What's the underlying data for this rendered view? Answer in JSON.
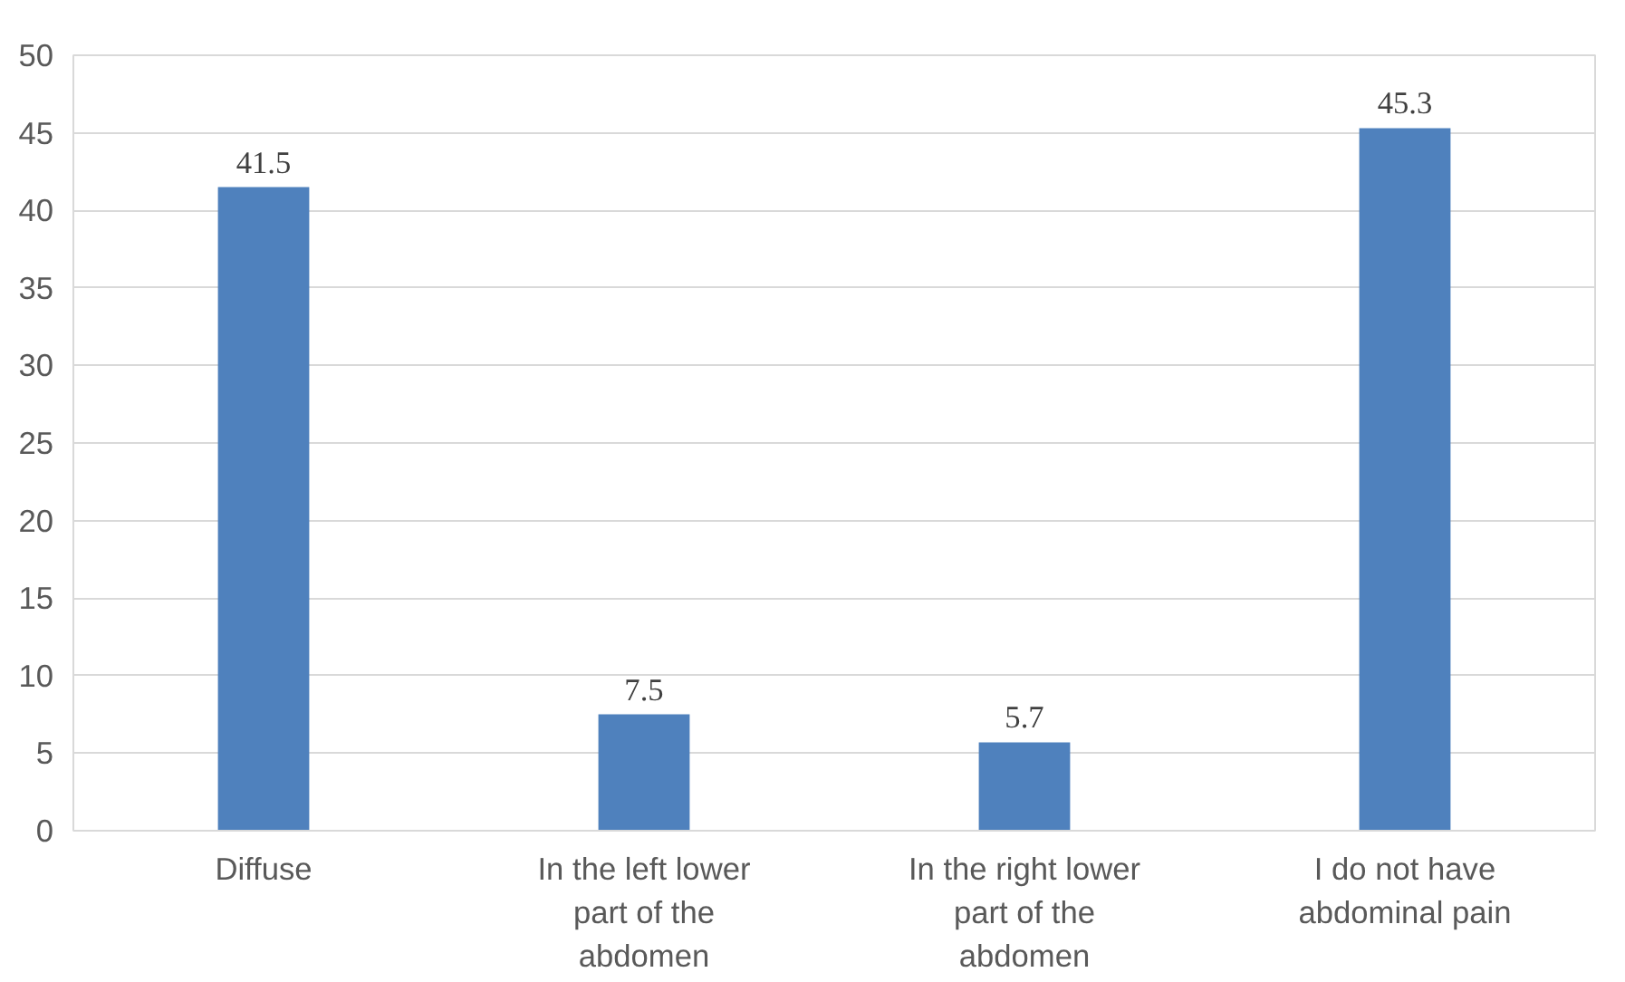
{
  "chart_data": {
    "type": "bar",
    "categories": [
      "Diffuse",
      "In the left lower part of the abdomen",
      "In the right lower part of the abdomen",
      "I do not have abdominal pain"
    ],
    "values": [
      41.5,
      7.5,
      5.7,
      45.3
    ],
    "color": "#4f81bd",
    "ylim": [
      0,
      50
    ],
    "yticks": [
      0,
      5,
      10,
      15,
      20,
      25,
      30,
      35,
      40,
      45,
      50
    ],
    "grid": "y",
    "data_labels": true
  }
}
